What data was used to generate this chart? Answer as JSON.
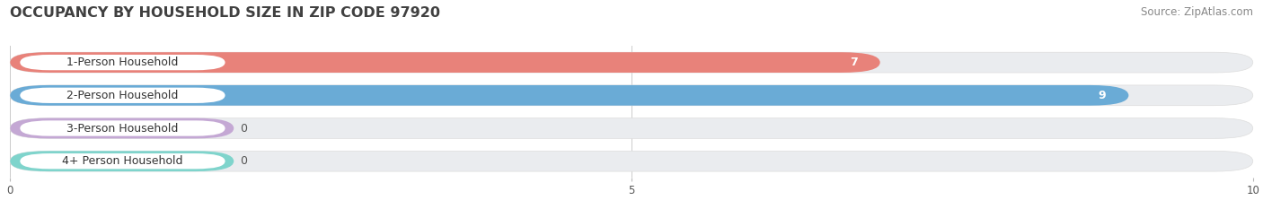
{
  "title": "OCCUPANCY BY HOUSEHOLD SIZE IN ZIP CODE 97920",
  "source": "Source: ZipAtlas.com",
  "categories": [
    "1-Person Household",
    "2-Person Household",
    "3-Person Household",
    "4+ Person Household"
  ],
  "values": [
    7,
    9,
    0,
    0
  ],
  "bar_colors": [
    "#E8827A",
    "#6AABD6",
    "#C4A8D4",
    "#7FD4CC"
  ],
  "background_color": "#FFFFFF",
  "bar_bg_color": "#EAECEF",
  "xlim": [
    0,
    10
  ],
  "xticks": [
    0,
    5,
    10
  ],
  "title_fontsize": 11.5,
  "source_fontsize": 8.5,
  "label_fontsize": 9,
  "value_fontsize": 9,
  "bar_height": 0.62,
  "figsize": [
    14.06,
    2.33
  ],
  "dpi": 100
}
